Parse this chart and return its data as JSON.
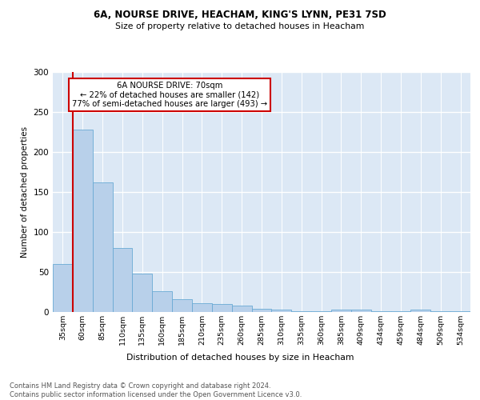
{
  "title_line1": "6A, NOURSE DRIVE, HEACHAM, KING'S LYNN, PE31 7SD",
  "title_line2": "Size of property relative to detached houses in Heacham",
  "xlabel": "Distribution of detached houses by size in Heacham",
  "ylabel": "Number of detached properties",
  "categories": [
    "35sqm",
    "60sqm",
    "85sqm",
    "110sqm",
    "135sqm",
    "160sqm",
    "185sqm",
    "210sqm",
    "235sqm",
    "260sqm",
    "285sqm",
    "310sqm",
    "335sqm",
    "360sqm",
    "385sqm",
    "409sqm",
    "434sqm",
    "459sqm",
    "484sqm",
    "509sqm",
    "534sqm"
  ],
  "values": [
    60,
    228,
    162,
    80,
    48,
    26,
    16,
    11,
    10,
    8,
    4,
    3,
    1,
    1,
    3,
    3,
    1,
    1,
    3,
    1,
    1
  ],
  "bar_color": "#b8d0ea",
  "bar_edge_color": "#6aaad4",
  "background_color": "#dce8f5",
  "grid_color": "#ffffff",
  "red_line_x": 1,
  "annotation_title": "6A NOURSE DRIVE: 70sqm",
  "annotation_line2": "← 22% of detached houses are smaller (142)",
  "annotation_line3": "77% of semi-detached houses are larger (493) →",
  "annotation_box_color": "#ffffff",
  "annotation_box_edge": "#cc0000",
  "red_line_color": "#cc0000",
  "footer_line1": "Contains HM Land Registry data © Crown copyright and database right 2024.",
  "footer_line2": "Contains public sector information licensed under the Open Government Licence v3.0.",
  "ylim": [
    0,
    300
  ],
  "yticks": [
    0,
    50,
    100,
    150,
    200,
    250,
    300
  ]
}
